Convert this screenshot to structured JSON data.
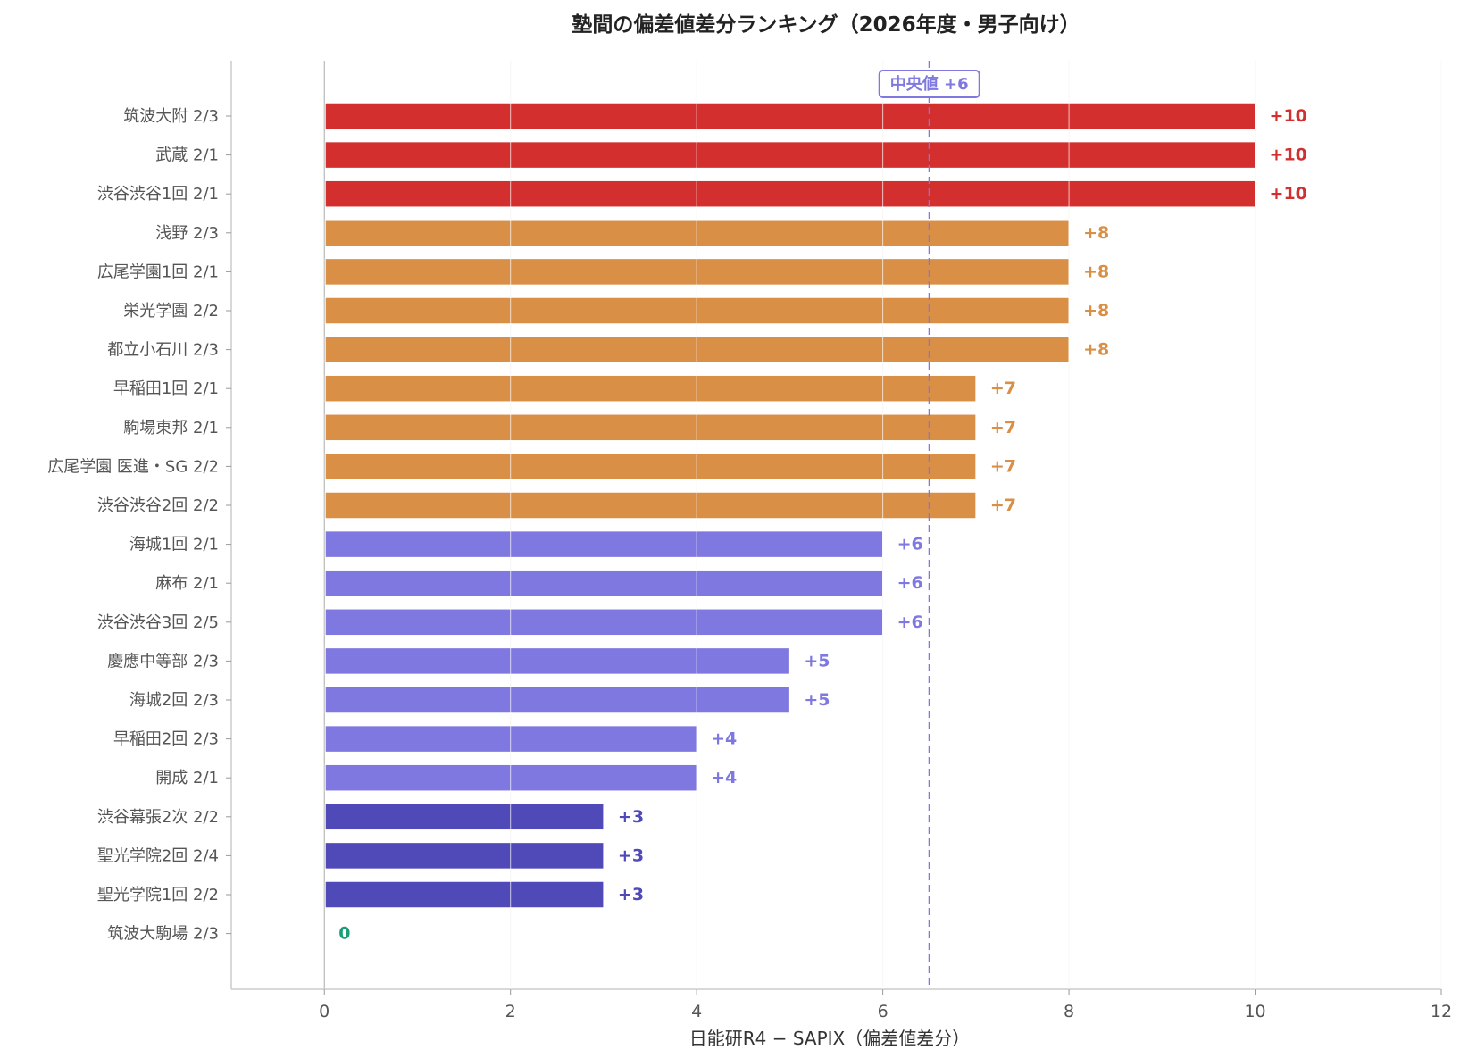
{
  "chart_data": {
    "type": "bar",
    "orientation": "horizontal",
    "title": "塾間の偏差値差分ランキング（2026年度・男子向け）",
    "xlabel": "日能研R4 − SAPIX（偏差値差分）",
    "ylabel": "",
    "xlim": [
      -1,
      12
    ],
    "xticks": [
      0,
      2,
      4,
      6,
      8,
      10,
      12
    ],
    "grid": "vertical",
    "categories": [
      "筑波大附 2/3",
      "武蔵 2/1",
      "渋谷渋谷1回 2/1",
      "浅野 2/3",
      "広尾学園1回 2/1",
      "栄光学園 2/2",
      "都立小石川 2/3",
      "早稲田1回 2/1",
      "駒場東邦 2/1",
      "広尾学園 医進・SG 2/2",
      "渋谷渋谷2回 2/2",
      "海城1回 2/1",
      "麻布 2/1",
      "渋谷渋谷3回 2/5",
      "慶應中等部 2/3",
      "海城2回 2/3",
      "早稲田2回 2/3",
      "開成 2/1",
      "渋谷幕張2次 2/2",
      "聖光学院2回 2/4",
      "聖光学院1回 2/2",
      "筑波大駒場 2/3"
    ],
    "values": [
      10,
      10,
      10,
      8,
      8,
      8,
      8,
      7,
      7,
      7,
      7,
      6,
      6,
      6,
      5,
      5,
      4,
      4,
      3,
      3,
      3,
      0
    ],
    "data_labels": [
      "+10",
      "+10",
      "+10",
      "+8",
      "+8",
      "+8",
      "+8",
      "+7",
      "+7",
      "+7",
      "+7",
      "+6",
      "+6",
      "+6",
      "+5",
      "+5",
      "+4",
      "+4",
      "+3",
      "+3",
      "+3",
      "0"
    ],
    "median_line": {
      "x": 6.5,
      "label": "中央値 +6",
      "color": "#7f78e0"
    },
    "colors": {
      "high": "#d32f2f",
      "mid": "#d98f45",
      "median": "#7f78e0",
      "low": "#5049b8",
      "zero": "#1a9e77"
    }
  }
}
